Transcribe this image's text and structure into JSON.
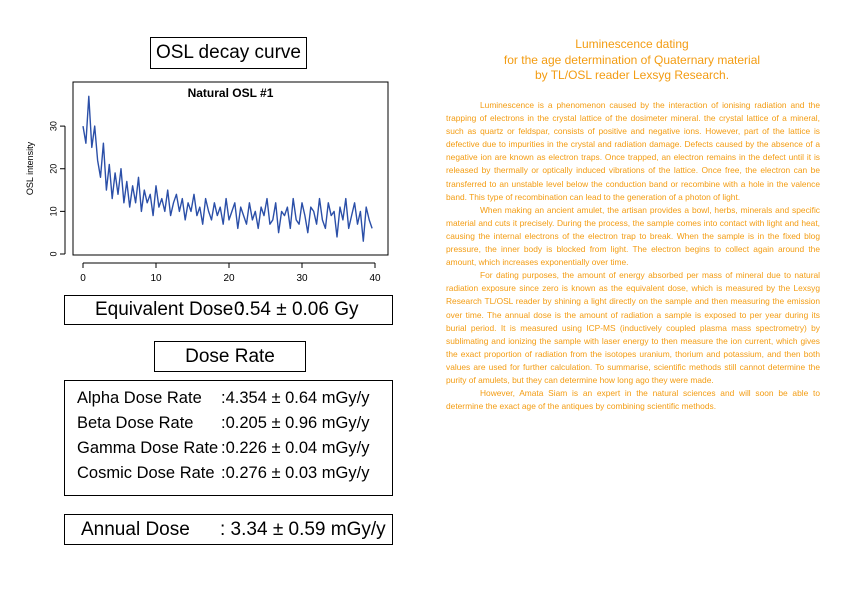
{
  "osl_title": "OSL decay curve",
  "chart_data": {
    "type": "line",
    "title": "Natural OSL #1",
    "xlabel": "",
    "ylabel": "OSL intensity",
    "xlim": [
      0,
      40
    ],
    "ylim": [
      0,
      38
    ],
    "xticks": [
      0,
      10,
      20,
      30,
      40
    ],
    "yticks": [
      0,
      10,
      20,
      30
    ],
    "color": "#2b4fa8",
    "x": [
      0.0,
      0.4,
      0.8,
      1.2,
      1.6,
      2.0,
      2.4,
      2.8,
      3.2,
      3.6,
      4.0,
      4.4,
      4.8,
      5.2,
      5.6,
      6.0,
      6.4,
      6.8,
      7.2,
      7.6,
      8.0,
      8.4,
      8.8,
      9.2,
      9.6,
      10.0,
      10.4,
      10.8,
      11.2,
      11.6,
      12.0,
      12.4,
      12.8,
      13.2,
      13.6,
      14.0,
      14.4,
      14.8,
      15.2,
      15.6,
      16.0,
      16.4,
      16.8,
      17.2,
      17.6,
      18.0,
      18.4,
      18.8,
      19.2,
      19.6,
      20.0,
      20.4,
      20.8,
      21.2,
      21.6,
      22.0,
      22.4,
      22.8,
      23.2,
      23.6,
      24.0,
      24.4,
      24.8,
      25.2,
      25.6,
      26.0,
      26.4,
      26.8,
      27.2,
      27.6,
      28.0,
      28.4,
      28.8,
      29.2,
      29.6,
      30.0,
      30.4,
      30.8,
      31.2,
      31.6,
      32.0,
      32.4,
      32.8,
      33.2,
      33.6,
      34.0,
      34.4,
      34.8,
      35.2,
      35.6,
      36.0,
      36.4,
      36.8,
      37.2,
      37.6,
      38.0,
      38.4,
      38.8,
      39.2,
      39.6
    ],
    "y": [
      30,
      26,
      37,
      25,
      30,
      22,
      18,
      26,
      15,
      21,
      13,
      19,
      14,
      20,
      12,
      17,
      11,
      16,
      12,
      18,
      10,
      15,
      12,
      14,
      9,
      16,
      11,
      13,
      10,
      15,
      9,
      12,
      14,
      10,
      13,
      8,
      12,
      10,
      14,
      9,
      11,
      7,
      13,
      10,
      8,
      12,
      9,
      11,
      7,
      13,
      8,
      10,
      12,
      6,
      11,
      9,
      7,
      12,
      8,
      10,
      6,
      11,
      9,
      13,
      7,
      8,
      12,
      5,
      10,
      9,
      11,
      6,
      13,
      8,
      7,
      12,
      9,
      5,
      11,
      10,
      7,
      13,
      8,
      6,
      12,
      9,
      10,
      4,
      11,
      8,
      13,
      6,
      9,
      12,
      7,
      10,
      3,
      11,
      8,
      6
    ],
    "grid": false
  },
  "equivalent_dose": {
    "label": "Equivalent Dose :",
    "value": "0.54 ± 0.06 Gy"
  },
  "dose_rate_title": "Dose Rate",
  "dose_rates": [
    {
      "label": "Alpha Dose Rate",
      "value": ":4.354 ± 0.64  mGy/y"
    },
    {
      "label": "Beta Dose Rate",
      "value": ":0.205 ± 0.96  mGy/y"
    },
    {
      "label": "Gamma Dose Rate",
      "value": ":0.226 ± 0.04  mGy/y"
    },
    {
      "label": "Cosmic Dose Rate",
      "value": ":0.276 ± 0.03  mGy/y"
    }
  ],
  "annual_dose": {
    "label": "Annual Dose",
    "value": ": 3.34 ± 0.59 mGy/y"
  },
  "article": {
    "title_lines": [
      "Luminescence dating",
      "for the age determination of Quaternary material",
      "by TL/OSL reader Lexsyg Research."
    ],
    "paragraphs": [
      "Luminescence is a phenomenon caused by the interaction of ionising radiation and the trapping of electrons in the crystal lattice of the dosimeter mineral. the crystal lattice of a mineral, such as quartz or feldspar, consists of positive and negative ions. However, part of the lattice is defective due to impurities in the crystal and radiation damage. Defects caused by the absence of a negative ion are known as electron traps. Once trapped, an electron remains in the defect until it is released by thermally or optically induced vibrations of the lattice. Once free, the electron can be transferred to an unstable level below the conduction band or recombine with a hole in the valence band. This type of recombination can lead to the generation of a photon of light.",
      "When making an ancient amulet, the artisan provides a bowl, herbs, minerals and specific material and cuts it precisely. During the process, the sample comes into contact with light and heat, causing the internal electrons of the electron trap to break. When the sample is in the fixed blog pressure, the inner body is blocked from light. The electron begins to collect again around the amount, which increases exponentially over time.",
      "For dating purposes, the amount of energy absorbed per mass of mineral due to natural radiation exposure since zero is known as the equivalent dose, which is measured by the Lexsyg Research TL/OSL reader by shining a light directly on the sample and then measuring the emission over time. The annual dose is the amount of radiation a sample is exposed to per year during its burial period. It is measured using ICP-MS (inductively coupled plasma mass spectrometry) by sublimating and ionizing the sample with laser energy to then measure the ion current, which gives the exact proportion of radiation from the isotopes uranium, thorium and potassium, and then both values are used for further calculation. To summarise, scientific methods still cannot determine the purity of amulets, but they can determine how long ago they were made.",
      "However, Amata Siam is an expert in the natural sciences and will soon be able to determine the exact age of the antiques by combining scientific methods."
    ]
  }
}
